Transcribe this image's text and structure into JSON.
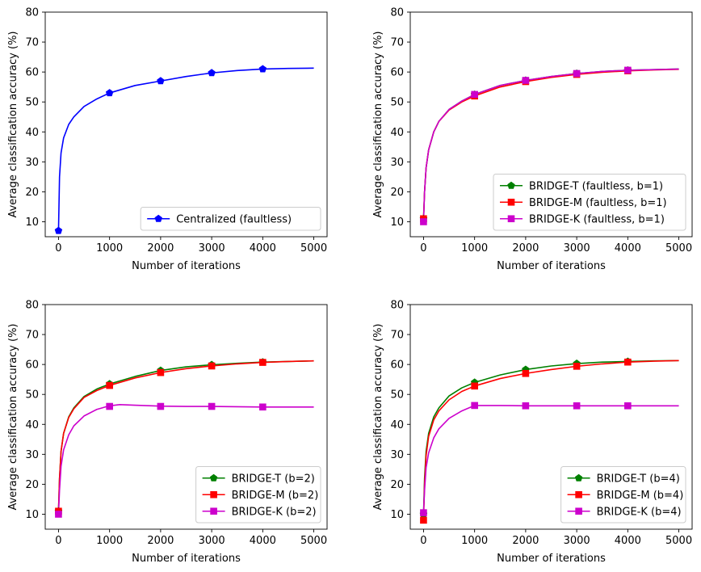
{
  "chart_data": [
    {
      "type": "line",
      "title": "",
      "xlabel": "Number of iterations",
      "ylabel": "Average classification accuracy (%)",
      "xlim": [
        -260,
        5260
      ],
      "ylim": [
        5,
        80
      ],
      "xticks": [
        0,
        1000,
        2000,
        3000,
        4000,
        5000
      ],
      "yticks": [
        10,
        20,
        30,
        40,
        50,
        60,
        70,
        80
      ],
      "legend_position": "lower-right",
      "series": [
        {
          "name": "Centralized (faultless)",
          "color": "#0000ff",
          "marker": "pentagon",
          "x": [
            0,
            20,
            50,
            100,
            200,
            300,
            500,
            750,
            1000,
            1500,
            2000,
            2500,
            3000,
            3500,
            4000,
            4500,
            5000
          ],
          "y": [
            7,
            25,
            33,
            38,
            42.5,
            45,
            48.5,
            51,
            53,
            55.5,
            57,
            58.5,
            59.7,
            60.5,
            61,
            61.2,
            61.3
          ],
          "marker_x": [
            0,
            1000,
            2000,
            3000,
            4000
          ],
          "marker_y": [
            7,
            53,
            57,
            59.7,
            61
          ]
        }
      ]
    },
    {
      "type": "line",
      "title": "",
      "xlabel": "Number of iterations",
      "ylabel": "Average classification accuracy (%)",
      "xlim": [
        -260,
        5260
      ],
      "ylim": [
        5,
        80
      ],
      "xticks": [
        0,
        1000,
        2000,
        3000,
        4000,
        5000
      ],
      "yticks": [
        10,
        20,
        30,
        40,
        50,
        60,
        70,
        80
      ],
      "legend_position": "lower-right",
      "series": [
        {
          "name": "BRIDGE-T (faultless, b=1)",
          "color": "#008000",
          "marker": "pentagon",
          "x": [
            0,
            20,
            50,
            100,
            200,
            300,
            500,
            750,
            1000,
            1500,
            2000,
            2500,
            3000,
            3500,
            4000,
            4500,
            5000
          ],
          "y": [
            11,
            20,
            28,
            34,
            40,
            43.5,
            47.5,
            50.3,
            52.5,
            55.5,
            57.2,
            58.5,
            59.5,
            60.2,
            60.6,
            60.8,
            61
          ],
          "marker_x": [
            0,
            1000,
            2000,
            3000,
            4000
          ],
          "marker_y": [
            11,
            52.5,
            57.2,
            59.5,
            60.6
          ]
        },
        {
          "name": "BRIDGE-M (faultless, b=1)",
          "color": "#ff0000",
          "marker": "square",
          "x": [
            0,
            20,
            50,
            100,
            200,
            300,
            500,
            750,
            1000,
            1500,
            2000,
            2500,
            3000,
            3500,
            4000,
            4500,
            5000
          ],
          "y": [
            11,
            20,
            28,
            34,
            40,
            43.5,
            47.3,
            50,
            52,
            55,
            56.8,
            58.2,
            59.2,
            59.9,
            60.4,
            60.7,
            60.9
          ],
          "marker_x": [
            0,
            1000,
            2000,
            3000,
            4000
          ],
          "marker_y": [
            11,
            52,
            56.8,
            59.2,
            60.4
          ]
        },
        {
          "name": "BRIDGE-K (faultless, b=1)",
          "color": "#cc00cc",
          "marker": "square",
          "x": [
            0,
            20,
            50,
            100,
            200,
            300,
            500,
            750,
            1000,
            1500,
            2000,
            2500,
            3000,
            3500,
            4000,
            4500,
            5000
          ],
          "y": [
            10,
            20,
            28,
            34,
            40,
            43.5,
            47.5,
            50.3,
            52.5,
            55.5,
            57.2,
            58.5,
            59.5,
            60.2,
            60.6,
            60.8,
            61
          ],
          "marker_x": [
            0,
            1000,
            2000,
            3000,
            4000
          ],
          "marker_y": [
            10,
            52.5,
            57.2,
            59.5,
            60.6
          ]
        }
      ]
    },
    {
      "type": "line",
      "title": "",
      "xlabel": "Number of iterations",
      "ylabel": "Average classification accuracy (%)",
      "xlim": [
        -260,
        5260
      ],
      "ylim": [
        5,
        80
      ],
      "xticks": [
        0,
        1000,
        2000,
        3000,
        4000,
        5000
      ],
      "yticks": [
        10,
        20,
        30,
        40,
        50,
        60,
        70,
        80
      ],
      "legend_position": "lower-right",
      "series": [
        {
          "name": "BRIDGE-T (b=2)",
          "color": "#008000",
          "marker": "pentagon",
          "x": [
            0,
            20,
            50,
            100,
            200,
            300,
            500,
            750,
            1000,
            1500,
            2000,
            2500,
            3000,
            3500,
            4000,
            4500,
            5000
          ],
          "y": [
            11,
            22,
            31,
            37,
            42.5,
            45.5,
            49.3,
            51.8,
            53.5,
            56,
            58,
            59.2,
            59.9,
            60.4,
            60.8,
            61,
            61.2
          ],
          "marker_x": [
            0,
            1000,
            2000,
            3000,
            4000
          ],
          "marker_y": [
            11,
            53.5,
            58,
            59.9,
            60.8
          ]
        },
        {
          "name": "BRIDGE-M (b=2)",
          "color": "#ff0000",
          "marker": "square",
          "x": [
            0,
            20,
            50,
            100,
            200,
            300,
            500,
            750,
            1000,
            1500,
            2000,
            2500,
            3000,
            3500,
            4000,
            4500,
            5000
          ],
          "y": [
            11,
            22,
            31,
            37,
            42.3,
            45.2,
            49,
            51.3,
            53,
            55.5,
            57.3,
            58.6,
            59.5,
            60.2,
            60.7,
            61,
            61.2
          ],
          "marker_x": [
            0,
            1000,
            2000,
            3000,
            4000
          ],
          "marker_y": [
            11,
            53,
            57.3,
            59.5,
            60.7
          ]
        },
        {
          "name": "BRIDGE-K (b=2)",
          "color": "#cc00cc",
          "marker": "square",
          "x": [
            0,
            20,
            50,
            100,
            200,
            300,
            500,
            750,
            1000,
            1200,
            1500,
            2000,
            2500,
            3000,
            3500,
            4000,
            4500,
            5000
          ],
          "y": [
            10,
            18,
            26,
            31.5,
            36.5,
            39.5,
            42.8,
            45,
            46.2,
            46.6,
            46.4,
            46.1,
            46,
            46,
            45.9,
            45.8,
            45.8,
            45.8
          ],
          "marker_x": [
            0,
            1000,
            2000,
            3000,
            4000
          ],
          "marker_y": [
            10,
            46,
            46,
            46,
            45.8
          ]
        }
      ]
    },
    {
      "type": "line",
      "title": "",
      "xlabel": "Number of iterations",
      "ylabel": "Average classification accuracy (%)",
      "xlim": [
        -260,
        5260
      ],
      "ylim": [
        5,
        80
      ],
      "xticks": [
        0,
        1000,
        2000,
        3000,
        4000,
        5000
      ],
      "yticks": [
        10,
        20,
        30,
        40,
        50,
        60,
        70,
        80
      ],
      "legend_position": "lower-right",
      "series": [
        {
          "name": "BRIDGE-T (b=4)",
          "color": "#008000",
          "marker": "pentagon",
          "x": [
            0,
            20,
            50,
            100,
            200,
            300,
            500,
            750,
            1000,
            1500,
            2000,
            2500,
            3000,
            3500,
            4000,
            4500,
            5000
          ],
          "y": [
            10,
            22,
            31,
            37,
            42.5,
            45.5,
            49.5,
            52.2,
            54,
            56.5,
            58.3,
            59.5,
            60.3,
            60.8,
            61,
            61.2,
            61.3
          ],
          "marker_x": [
            0,
            1000,
            2000,
            3000,
            4000
          ],
          "marker_y": [
            10,
            54,
            58.3,
            60.3,
            61
          ]
        },
        {
          "name": "BRIDGE-M (b=4)",
          "color": "#ff0000",
          "marker": "square",
          "x": [
            0,
            20,
            50,
            100,
            200,
            300,
            500,
            750,
            1000,
            1500,
            2000,
            2500,
            3000,
            3500,
            4000,
            4500,
            5000
          ],
          "y": [
            8,
            20,
            29.5,
            36,
            41.5,
            44.5,
            48.2,
            51,
            52.8,
            55.3,
            57,
            58.3,
            59.4,
            60.2,
            60.8,
            61.1,
            61.3
          ],
          "marker_x": [
            0,
            1000,
            2000,
            3000,
            4000
          ],
          "marker_y": [
            8,
            52.8,
            57,
            59.4,
            60.8
          ]
        },
        {
          "name": "BRIDGE-K (b=4)",
          "color": "#cc00cc",
          "marker": "square",
          "x": [
            0,
            20,
            50,
            100,
            200,
            300,
            500,
            750,
            1000,
            1500,
            2000,
            2500,
            3000,
            3500,
            4000,
            4500,
            5000
          ],
          "y": [
            10.5,
            18,
            25.5,
            30.5,
            35.5,
            38.5,
            42,
            44.5,
            46.3,
            46.3,
            46.2,
            46.2,
            46.2,
            46.2,
            46.2,
            46.2,
            46.2
          ],
          "marker_x": [
            0,
            1000,
            2000,
            3000,
            4000
          ],
          "marker_y": [
            10.5,
            46.3,
            46.2,
            46.2,
            46.2
          ]
        }
      ]
    }
  ]
}
